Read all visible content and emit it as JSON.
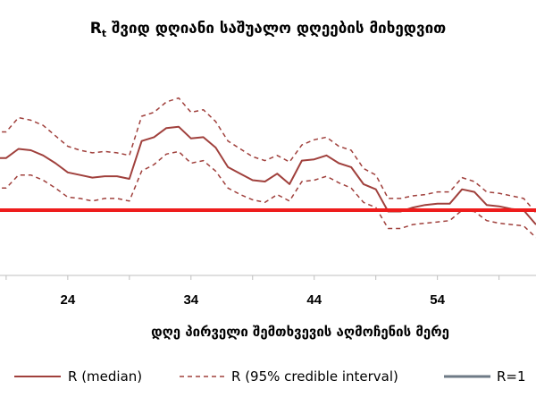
{
  "chart_data": {
    "type": "line",
    "title": {
      "main": "R",
      "sub": "t",
      "rest": " შვიდ დღიანი საშუალო დღეების მიხედვით"
    },
    "xlabel": "დღე პირველი შემთხვევის აღმოჩენის მერე",
    "ylabel": "",
    "xlim": [
      18.5,
      62
    ],
    "ylim": [
      0.5,
      2.2
    ],
    "x_ticks": [
      24,
      34,
      44,
      54
    ],
    "x": [
      18,
      19,
      20,
      21,
      22,
      23,
      24,
      25,
      26,
      27,
      28,
      29,
      30,
      31,
      32,
      33,
      34,
      35,
      36,
      37,
      38,
      39,
      40,
      41,
      42,
      43,
      44,
      45,
      46,
      47,
      48,
      49,
      50,
      51,
      52,
      53,
      54,
      55,
      56,
      57,
      58,
      59,
      60,
      61,
      62
    ],
    "series": [
      {
        "name": "R (median)",
        "style": "solid",
        "values": [
          1.4,
          1.4,
          1.47,
          1.46,
          1.42,
          1.36,
          1.29,
          1.27,
          1.25,
          1.26,
          1.26,
          1.24,
          1.53,
          1.56,
          1.63,
          1.64,
          1.55,
          1.56,
          1.48,
          1.33,
          1.28,
          1.23,
          1.22,
          1.28,
          1.2,
          1.38,
          1.39,
          1.42,
          1.36,
          1.33,
          1.2,
          1.16,
          0.99,
          0.99,
          1.02,
          1.04,
          1.05,
          1.05,
          1.16,
          1.14,
          1.04,
          1.03,
          1.01,
          1.0,
          0.89
        ]
      },
      {
        "name": "R (95% credible interval)",
        "style": "dashed",
        "role": "upper",
        "values": [
          1.6,
          1.6,
          1.71,
          1.69,
          1.65,
          1.57,
          1.49,
          1.46,
          1.44,
          1.45,
          1.44,
          1.42,
          1.72,
          1.75,
          1.83,
          1.86,
          1.75,
          1.77,
          1.68,
          1.53,
          1.47,
          1.41,
          1.38,
          1.42,
          1.37,
          1.5,
          1.54,
          1.56,
          1.49,
          1.46,
          1.32,
          1.27,
          1.09,
          1.09,
          1.11,
          1.12,
          1.14,
          1.14,
          1.25,
          1.22,
          1.14,
          1.13,
          1.11,
          1.09,
          0.98
        ]
      },
      {
        "name": "R (95% credible interval)",
        "style": "dashed",
        "role": "lower",
        "values": [
          1.17,
          1.17,
          1.27,
          1.27,
          1.23,
          1.17,
          1.1,
          1.09,
          1.07,
          1.09,
          1.09,
          1.07,
          1.3,
          1.35,
          1.43,
          1.45,
          1.36,
          1.38,
          1.3,
          1.17,
          1.12,
          1.08,
          1.06,
          1.12,
          1.07,
          1.22,
          1.23,
          1.26,
          1.21,
          1.17,
          1.06,
          1.02,
          0.86,
          0.86,
          0.89,
          0.9,
          0.91,
          0.92,
          1.0,
          0.99,
          0.92,
          0.9,
          0.89,
          0.88,
          0.79
        ]
      }
    ],
    "reference_line": {
      "name": "R=1",
      "value": 1.0
    },
    "legend": [
      "R (median)",
      "R (95% credible interval)",
      "R=1"
    ],
    "legend_position": "bottom",
    "grid": false
  },
  "colors": {
    "series": "#a0403c",
    "reference": "#ee1c1c",
    "legend_ref": "#6e7a86",
    "axis": "#bfbfbf"
  }
}
